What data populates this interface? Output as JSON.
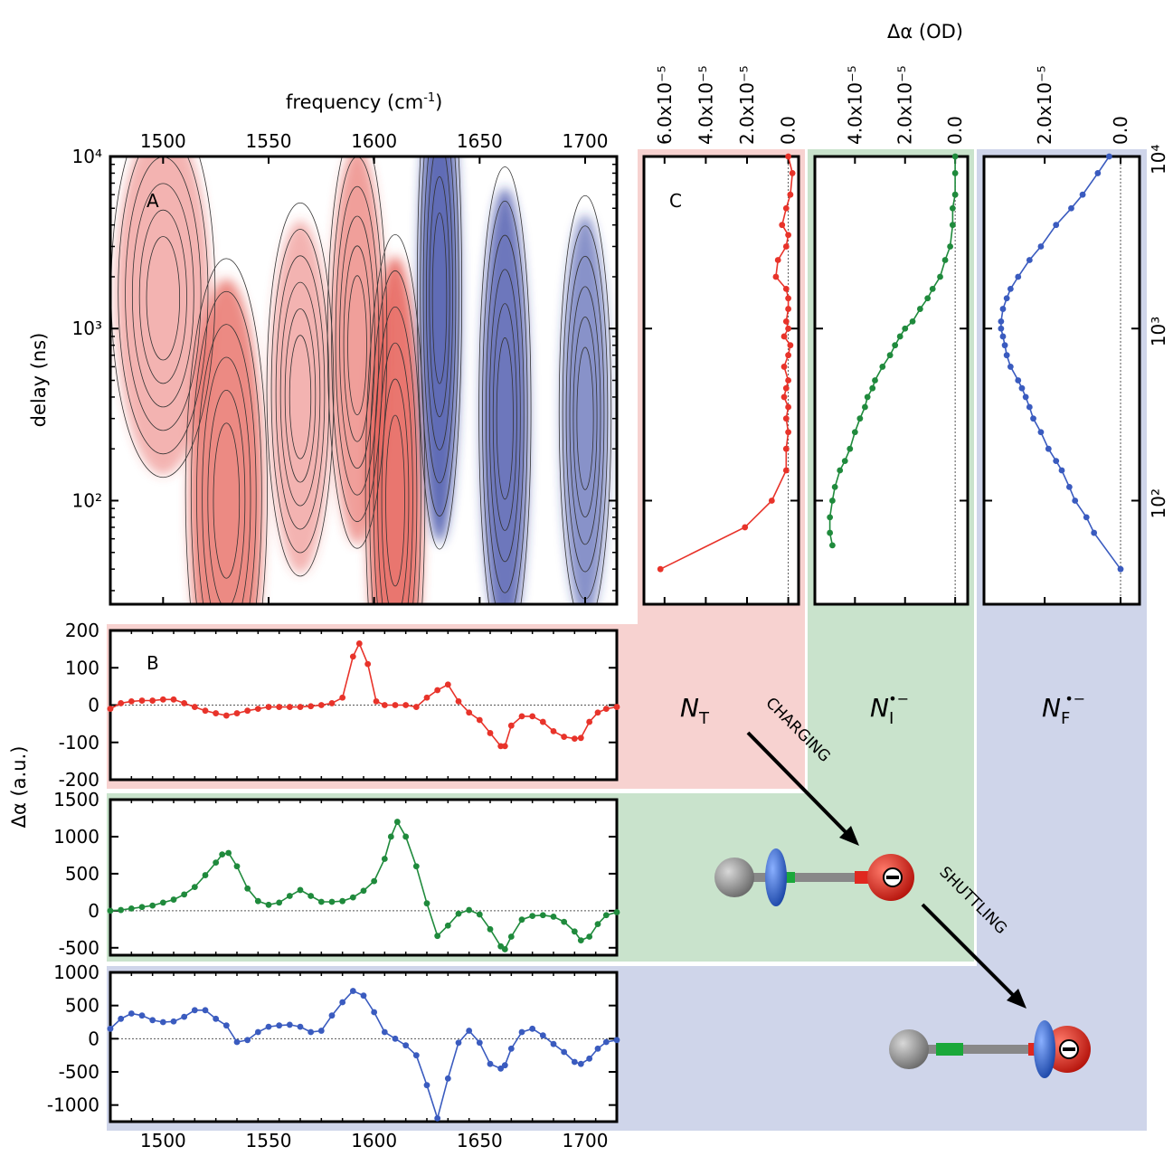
{
  "figure": {
    "top_axis_label": "frequency (cm",
    "top_axis_label_sup": "-1",
    "top_axis_label_close": ")",
    "right_axis_label": "Δα (OD)",
    "left_ylabel_a": "delay (ns)",
    "left_ylabel_b": "Δα (a.u.)",
    "panel_a": "A",
    "panel_b": "B",
    "panel_c": "C",
    "species_T": "N",
    "species_T_sub": "T",
    "species_I": "N",
    "species_I_sub": "I",
    "species_I_sup": "•−",
    "species_F": "N",
    "species_F_sub": "F",
    "species_F_sup": "•−",
    "arrow_charging": "CHARGING",
    "arrow_shuttling": "SHUTTLING",
    "band_colors": {
      "red": "#f7d2d0",
      "green": "#c9e3cc",
      "blue": "#cfd5ea"
    },
    "series_colors": {
      "red": "#e8332a",
      "green": "#1f8a3c",
      "blue": "#3a5bbf"
    }
  },
  "chart_data": [
    {
      "type": "heatmap",
      "title": "A",
      "xlabel": "frequency (cm-1)",
      "ylabel": "delay (ns)",
      "xlim": [
        1475,
        1715
      ],
      "ylim_log": [
        25,
        10000
      ],
      "yscale": "log",
      "x_ticks": [
        "1500",
        "1550",
        "1600",
        "1650",
        "1700"
      ],
      "y_ticks": [
        "10²",
        "10³",
        "10⁴"
      ],
      "bands": [
        {
          "center": 1530,
          "width": 11,
          "delay": 100,
          "sign": "positive",
          "amp": 0.65
        },
        {
          "center": 1610,
          "width": 8,
          "delay": 100,
          "sign": "positive",
          "amp": 0.9
        },
        {
          "center": 1592,
          "width": 8,
          "delay": 800,
          "sign": "positive",
          "amp": 0.4
        },
        {
          "center": 1565,
          "width": 9,
          "delay": 400,
          "sign": "positive",
          "amp": 0.15
        },
        {
          "center": 1500,
          "width": 14,
          "delay": 1500,
          "sign": "positive",
          "amp": 0.15
        },
        {
          "center": 1631,
          "width": 6,
          "delay": 1500,
          "sign": "negative",
          "amp": 0.9
        },
        {
          "center": 1662,
          "width": 7,
          "delay": 300,
          "sign": "negative",
          "amp": 0.75
        },
        {
          "center": 1700,
          "width": 7,
          "delay": 300,
          "sign": "negative",
          "amp": 0.45
        }
      ]
    },
    {
      "type": "line",
      "title": "B",
      "xlim": [
        1475,
        1715
      ],
      "ylim": [
        -200,
        200
      ],
      "y_ticks": [
        "200",
        "100",
        "0",
        "-100",
        "-200"
      ],
      "series": [
        {
          "x": [
            1475,
            1480,
            1485,
            1490,
            1495,
            1500,
            1505,
            1510,
            1515,
            1520,
            1525,
            1530,
            1535,
            1540,
            1545,
            1550,
            1555,
            1560,
            1565,
            1570,
            1575,
            1580,
            1585,
            1590,
            1593,
            1597,
            1601,
            1605,
            1610,
            1615,
            1620,
            1625,
            1630,
            1635,
            1640,
            1645,
            1650,
            1655,
            1660,
            1662,
            1665,
            1670,
            1675,
            1680,
            1685,
            1690,
            1695,
            1698,
            1702,
            1706,
            1710,
            1715
          ],
          "y": [
            -10,
            5,
            10,
            12,
            12,
            15,
            15,
            5,
            -5,
            -15,
            -22,
            -28,
            -22,
            -15,
            -10,
            -5,
            -5,
            -5,
            -5,
            -3,
            0,
            5,
            20,
            130,
            165,
            110,
            10,
            0,
            0,
            0,
            -5,
            20,
            40,
            55,
            10,
            -20,
            -40,
            -75,
            -110,
            -110,
            -55,
            -30,
            -30,
            -45,
            -70,
            -85,
            -90,
            -88,
            -45,
            -20,
            -10,
            -5
          ]
        }
      ]
    },
    {
      "type": "line",
      "xlim": [
        1475,
        1715
      ],
      "ylim": [
        -600,
        1500
      ],
      "y_ticks": [
        "1500",
        "1000",
        "500",
        "0",
        "-500"
      ],
      "series": [
        {
          "x": [
            1475,
            1480,
            1485,
            1490,
            1495,
            1500,
            1505,
            1510,
            1515,
            1520,
            1525,
            1528,
            1531,
            1535,
            1540,
            1545,
            1550,
            1555,
            1560,
            1565,
            1570,
            1575,
            1580,
            1585,
            1590,
            1595,
            1600,
            1605,
            1608,
            1611,
            1615,
            1620,
            1625,
            1630,
            1635,
            1640,
            1645,
            1650,
            1655,
            1660,
            1662,
            1665,
            1670,
            1675,
            1680,
            1685,
            1690,
            1695,
            1698,
            1702,
            1706,
            1710,
            1715
          ],
          "y": [
            0,
            10,
            30,
            50,
            70,
            110,
            150,
            220,
            320,
            480,
            650,
            760,
            780,
            600,
            300,
            130,
            80,
            110,
            200,
            280,
            200,
            120,
            120,
            130,
            180,
            270,
            400,
            700,
            1000,
            1200,
            1000,
            600,
            100,
            -340,
            -200,
            -40,
            10,
            -50,
            -250,
            -480,
            -520,
            -350,
            -120,
            -70,
            -60,
            -80,
            -150,
            -280,
            -400,
            -350,
            -180,
            -60,
            -20
          ]
        }
      ]
    },
    {
      "type": "line",
      "xlim": [
        1475,
        1715
      ],
      "ylim": [
        -1250,
        1000
      ],
      "y_ticks": [
        "1000",
        "500",
        "0",
        "-500",
        "-1000"
      ],
      "series": [
        {
          "x": [
            1475,
            1480,
            1485,
            1490,
            1495,
            1500,
            1505,
            1510,
            1515,
            1520,
            1525,
            1530,
            1535,
            1540,
            1545,
            1550,
            1555,
            1560,
            1565,
            1570,
            1575,
            1580,
            1585,
            1590,
            1595,
            1600,
            1605,
            1610,
            1615,
            1620,
            1625,
            1630,
            1635,
            1640,
            1645,
            1650,
            1655,
            1660,
            1662,
            1665,
            1670,
            1675,
            1680,
            1685,
            1690,
            1695,
            1698,
            1702,
            1706,
            1710,
            1715
          ],
          "y": [
            150,
            300,
            380,
            350,
            280,
            250,
            260,
            330,
            430,
            430,
            300,
            200,
            -50,
            -20,
            100,
            180,
            200,
            210,
            180,
            100,
            120,
            350,
            550,
            720,
            650,
            400,
            100,
            0,
            -100,
            -250,
            -700,
            -1200,
            -600,
            -60,
            120,
            -60,
            -380,
            -450,
            -400,
            -150,
            100,
            150,
            50,
            -80,
            -200,
            -350,
            -380,
            -300,
            -150,
            -50,
            -20
          ]
        }
      ]
    },
    {
      "type": "line",
      "title": "C",
      "xlabel": "Δα (OD)",
      "xlim": [
        7e-05,
        -5e-06
      ],
      "x_ticks": [
        "6.0x10⁻⁵",
        "4.0x10⁻⁵",
        "2.0x10⁻⁵",
        "0.0"
      ],
      "yscale": "log",
      "ylim_log": [
        25,
        10000
      ],
      "series": [
        {
          "name": "N_T",
          "delay": [
            10000,
            8000,
            6000,
            5000,
            4000,
            3500,
            3000,
            2500,
            2000,
            1700,
            1500,
            1300,
            1100,
            1000,
            900,
            800,
            700,
            600,
            500,
            450,
            400,
            350,
            300,
            250,
            200,
            150,
            100,
            70,
            40
          ],
          "value": [
            0.0,
            -2e-06,
            -1e-06,
            1e-06,
            3e-06,
            0.0,
            1e-06,
            5e-06,
            6e-06,
            1e-06,
            0.0,
            0.0,
            1e-06,
            0.0,
            2e-06,
            -1e-06,
            0.0,
            2e-06,
            0.0,
            1e-06,
            2e-06,
            0.0,
            1e-06,
            0.0,
            1e-06,
            1e-06,
            8e-06,
            2.1e-05,
            6.2e-05
          ]
        }
      ]
    },
    {
      "type": "line",
      "xlim": [
        5.6e-05,
        -5e-06
      ],
      "x_ticks": [
        "4.0x10⁻⁵",
        "2.0x10⁻⁵",
        "0.0"
      ],
      "yscale": "log",
      "ylim_log": [
        25,
        10000
      ],
      "series": [
        {
          "name": "N_I",
          "delay": [
            10000,
            8000,
            6000,
            5000,
            4000,
            3000,
            2500,
            2000,
            1700,
            1500,
            1300,
            1100,
            1000,
            900,
            800,
            700,
            600,
            500,
            450,
            400,
            350,
            300,
            250,
            200,
            170,
            150,
            120,
            100,
            80,
            65,
            55
          ],
          "value": [
            0.0,
            0.0,
            0.0,
            1e-06,
            1e-06,
            2e-06,
            4e-06,
            6e-06,
            9e-06,
            1.1e-05,
            1.4e-05,
            1.7e-05,
            2e-05,
            2.2e-05,
            2.4e-05,
            2.6e-05,
            2.9e-05,
            3.2e-05,
            3.3e-05,
            3.5e-05,
            3.6e-05,
            3.8e-05,
            4e-05,
            4.2e-05,
            4.4e-05,
            4.6e-05,
            4.8e-05,
            4.9e-05,
            5e-05,
            5e-05,
            4.9e-05
          ]
        }
      ]
    },
    {
      "type": "line",
      "xlim": [
        3.6e-05,
        -5e-06
      ],
      "x_ticks": [
        "2.0x10⁻⁵",
        "0.0"
      ],
      "yscale": "log",
      "ylim_log": [
        25,
        10000
      ],
      "series": [
        {
          "name": "N_F",
          "delay": [
            10000,
            8000,
            6000,
            5000,
            4000,
            3000,
            2500,
            2000,
            1700,
            1500,
            1300,
            1100,
            1000,
            900,
            800,
            700,
            600,
            500,
            450,
            400,
            350,
            300,
            250,
            200,
            170,
            150,
            120,
            100,
            80,
            65,
            40
          ],
          "value": [
            3e-06,
            6e-06,
            1e-05,
            1.3e-05,
            1.7e-05,
            2.1e-05,
            2.4e-05,
            2.7e-05,
            2.9e-05,
            3e-05,
            3.1e-05,
            3.15e-05,
            3.15e-05,
            3.1e-05,
            3.05e-05,
            3e-05,
            2.9e-05,
            2.7e-05,
            2.6e-05,
            2.5e-05,
            2.4e-05,
            2.3e-05,
            2.1e-05,
            1.9e-05,
            1.7e-05,
            1.55e-05,
            1.35e-05,
            1.2e-05,
            9e-06,
            7e-06,
            0.0
          ]
        }
      ]
    }
  ]
}
